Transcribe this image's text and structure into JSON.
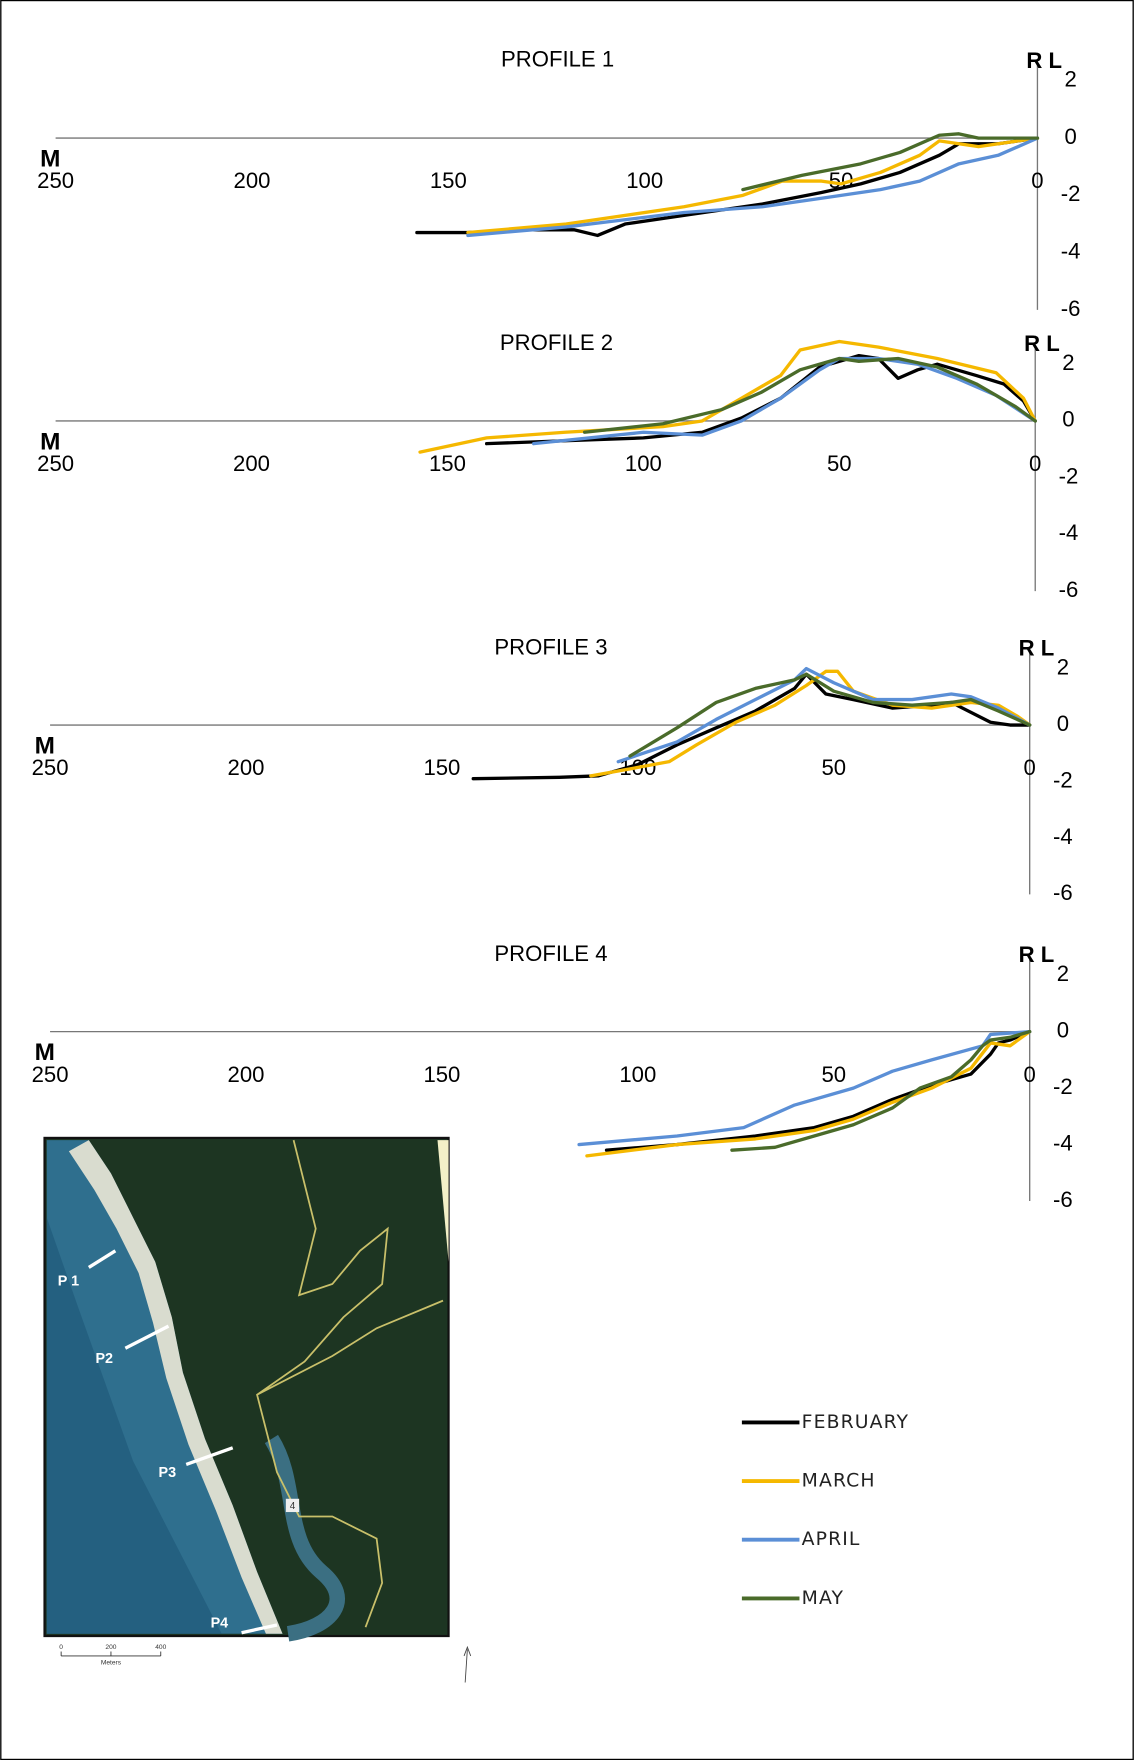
{
  "chart_data": [
    {
      "type": "line",
      "title": "PROFILE 1",
      "x_label": "M",
      "y_label": "R L",
      "xlim": [
        250,
        0
      ],
      "xticks": [
        250,
        200,
        150,
        100,
        50,
        0
      ],
      "ylim": [
        -6,
        2
      ],
      "yticks": [
        2,
        0,
        -2,
        -4,
        -6
      ],
      "series": [
        {
          "name": "FEBRUARY",
          "color": "#000000",
          "x": [
            158,
            145,
            130,
            118,
            112,
            105,
            90,
            70,
            55,
            45,
            35,
            25,
            20,
            10,
            0
          ],
          "values": [
            -3.3,
            -3.3,
            -3.2,
            -3.2,
            -3.4,
            -3.0,
            -2.7,
            -2.3,
            -1.9,
            -1.6,
            -1.2,
            -0.6,
            -0.2,
            -0.2,
            0
          ]
        },
        {
          "name": "MARCH",
          "color": "#f5b800",
          "x": [
            145,
            120,
            90,
            75,
            65,
            55,
            50,
            40,
            30,
            25,
            15,
            5,
            0
          ],
          "values": [
            -3.3,
            -3.0,
            -2.4,
            -2.0,
            -1.5,
            -1.5,
            -1.6,
            -1.2,
            -0.6,
            -0.1,
            -0.3,
            -0.1,
            0
          ]
        },
        {
          "name": "APRIL",
          "color": "#5b8fd6",
          "x": [
            145,
            120,
            90,
            70,
            55,
            40,
            30,
            20,
            10,
            0
          ],
          "values": [
            -3.4,
            -3.1,
            -2.6,
            -2.4,
            -2.1,
            -1.8,
            -1.5,
            -0.9,
            -0.6,
            0
          ]
        },
        {
          "name": "MAY",
          "color": "#4a6b2a",
          "x": [
            75,
            60,
            45,
            35,
            25,
            20,
            15,
            5,
            0
          ],
          "values": [
            -1.8,
            -1.3,
            -0.9,
            -0.5,
            0.1,
            0.15,
            0,
            0,
            0
          ]
        }
      ]
    },
    {
      "type": "line",
      "title": "PROFILE 2",
      "x_label": "M",
      "y_label": "R L",
      "xlim": [
        250,
        0
      ],
      "xticks": [
        250,
        200,
        150,
        100,
        50,
        0
      ],
      "ylim": [
        -6,
        2
      ],
      "yticks": [
        2,
        0,
        -2,
        -4,
        -6
      ],
      "series": [
        {
          "name": "FEBRUARY",
          "color": "#000000",
          "x": [
            140,
            120,
            100,
            85,
            75,
            65,
            55,
            45,
            40,
            35,
            30,
            25,
            15,
            8,
            3,
            0
          ],
          "values": [
            -0.8,
            -0.7,
            -0.6,
            -0.4,
            0.1,
            0.8,
            1.9,
            2.3,
            2.2,
            1.5,
            1.8,
            2.0,
            1.6,
            1.3,
            0.7,
            0
          ]
        },
        {
          "name": "MARCH",
          "color": "#f5b800",
          "x": [
            157,
            140,
            120,
            95,
            85,
            75,
            65,
            60,
            50,
            40,
            25,
            10,
            3,
            0
          ],
          "values": [
            -1.1,
            -0.6,
            -0.4,
            -0.2,
            0,
            0.8,
            1.6,
            2.5,
            2.8,
            2.6,
            2.2,
            1.7,
            0.8,
            0
          ]
        },
        {
          "name": "APRIL",
          "color": "#5b8fd6",
          "x": [
            128,
            100,
            85,
            75,
            65,
            55,
            50,
            40,
            30,
            20,
            10,
            0
          ],
          "values": [
            -0.8,
            -0.4,
            -0.5,
            0,
            0.8,
            1.8,
            2.2,
            2.2,
            2.0,
            1.5,
            0.9,
            0
          ]
        },
        {
          "name": "MAY",
          "color": "#4a6b2a",
          "x": [
            115,
            95,
            80,
            70,
            60,
            50,
            45,
            35,
            25,
            15,
            5,
            0
          ],
          "values": [
            -0.4,
            -0.1,
            0.4,
            1.0,
            1.8,
            2.2,
            2.1,
            2.2,
            1.9,
            1.3,
            0.5,
            0
          ]
        }
      ]
    },
    {
      "type": "line",
      "title": "PROFILE 3",
      "x_label": "M",
      "y_label": "R L",
      "xlim": [
        250,
        0
      ],
      "xticks": [
        250,
        200,
        150,
        100,
        50,
        0
      ],
      "ylim": [
        -6,
        2
      ],
      "yticks": [
        2,
        0,
        -2,
        -4,
        -6
      ],
      "series": [
        {
          "name": "FEBRUARY",
          "color": "#000000",
          "x": [
            142,
            120,
            110,
            100,
            90,
            80,
            70,
            60,
            57,
            52,
            45,
            35,
            25,
            20,
            10,
            5,
            0
          ],
          "values": [
            -1.9,
            -1.85,
            -1.8,
            -1.4,
            -0.7,
            -0.1,
            0.5,
            1.3,
            1.8,
            1.1,
            0.9,
            0.6,
            0.7,
            0.8,
            0.1,
            0,
            0
          ]
        },
        {
          "name": "MARCH",
          "color": "#f5b800",
          "x": [
            112,
            100,
            92,
            85,
            75,
            65,
            57,
            52,
            49,
            45,
            35,
            25,
            15,
            8,
            3,
            0
          ],
          "values": [
            -1.8,
            -1.5,
            -1.3,
            -0.7,
            0.1,
            0.7,
            1.4,
            1.9,
            1.9,
            1.2,
            0.7,
            0.6,
            0.8,
            0.7,
            0.3,
            0
          ]
        },
        {
          "name": "APRIL",
          "color": "#5b8fd6",
          "x": [
            105,
            90,
            80,
            70,
            60,
            57,
            50,
            40,
            30,
            20,
            15,
            8,
            0
          ],
          "values": [
            -1.3,
            -0.6,
            0.2,
            0.9,
            1.6,
            2.0,
            1.5,
            0.9,
            0.9,
            1.1,
            1.0,
            0.6,
            0
          ]
        },
        {
          "name": "MAY",
          "color": "#4a6b2a",
          "x": [
            102,
            90,
            80,
            70,
            60,
            57,
            50,
            40,
            30,
            20,
            15,
            8,
            0
          ],
          "values": [
            -1.1,
            -0.1,
            0.8,
            1.3,
            1.6,
            1.8,
            1.2,
            0.8,
            0.7,
            0.8,
            0.9,
            0.5,
            0
          ]
        }
      ]
    },
    {
      "type": "line",
      "title": "PROFILE 4",
      "x_label": "M",
      "y_label": "R L",
      "xlim": [
        250,
        0
      ],
      "xticks": [
        250,
        200,
        150,
        100,
        50,
        0
      ],
      "ylim": [
        -6,
        2
      ],
      "yticks": [
        2,
        0,
        -2,
        -4,
        -6
      ],
      "series": [
        {
          "name": "FEBRUARY",
          "color": "#000000",
          "x": [
            108,
            90,
            70,
            55,
            45,
            35,
            25,
            15,
            10,
            8,
            5,
            0
          ],
          "values": [
            -4.2,
            -4.0,
            -3.7,
            -3.4,
            -3.0,
            -2.4,
            -1.9,
            -1.5,
            -0.8,
            -0.4,
            -0.3,
            0
          ]
        },
        {
          "name": "MARCH",
          "color": "#f5b800",
          "x": [
            113,
            90,
            70,
            55,
            45,
            35,
            25,
            15,
            10,
            5,
            3,
            0
          ],
          "values": [
            -4.4,
            -4.0,
            -3.8,
            -3.5,
            -3.1,
            -2.5,
            -2.0,
            -1.3,
            -0.4,
            -0.5,
            -0.3,
            0
          ]
        },
        {
          "name": "APRIL",
          "color": "#5b8fd6",
          "x": [
            115,
            90,
            73,
            60,
            45,
            35,
            25,
            12,
            10,
            5,
            0
          ],
          "values": [
            -4.0,
            -3.7,
            -3.4,
            -2.6,
            -2.0,
            -1.4,
            -1.0,
            -0.5,
            -0.1,
            -0.05,
            0
          ]
        },
        {
          "name": "MAY",
          "color": "#4a6b2a",
          "x": [
            76,
            65,
            55,
            45,
            35,
            28,
            20,
            15,
            12,
            10,
            5,
            0
          ],
          "values": [
            -4.2,
            -4.1,
            -3.7,
            -3.3,
            -2.7,
            -2.0,
            -1.6,
            -1.0,
            -0.5,
            -0.3,
            -0.2,
            0
          ]
        }
      ]
    }
  ],
  "map": {
    "labels": [
      "P 1",
      "P2",
      "P3",
      "P4"
    ],
    "road": "4",
    "scale_ticks": [
      0,
      200,
      400
    ],
    "scale_unit": "Meters"
  }
}
